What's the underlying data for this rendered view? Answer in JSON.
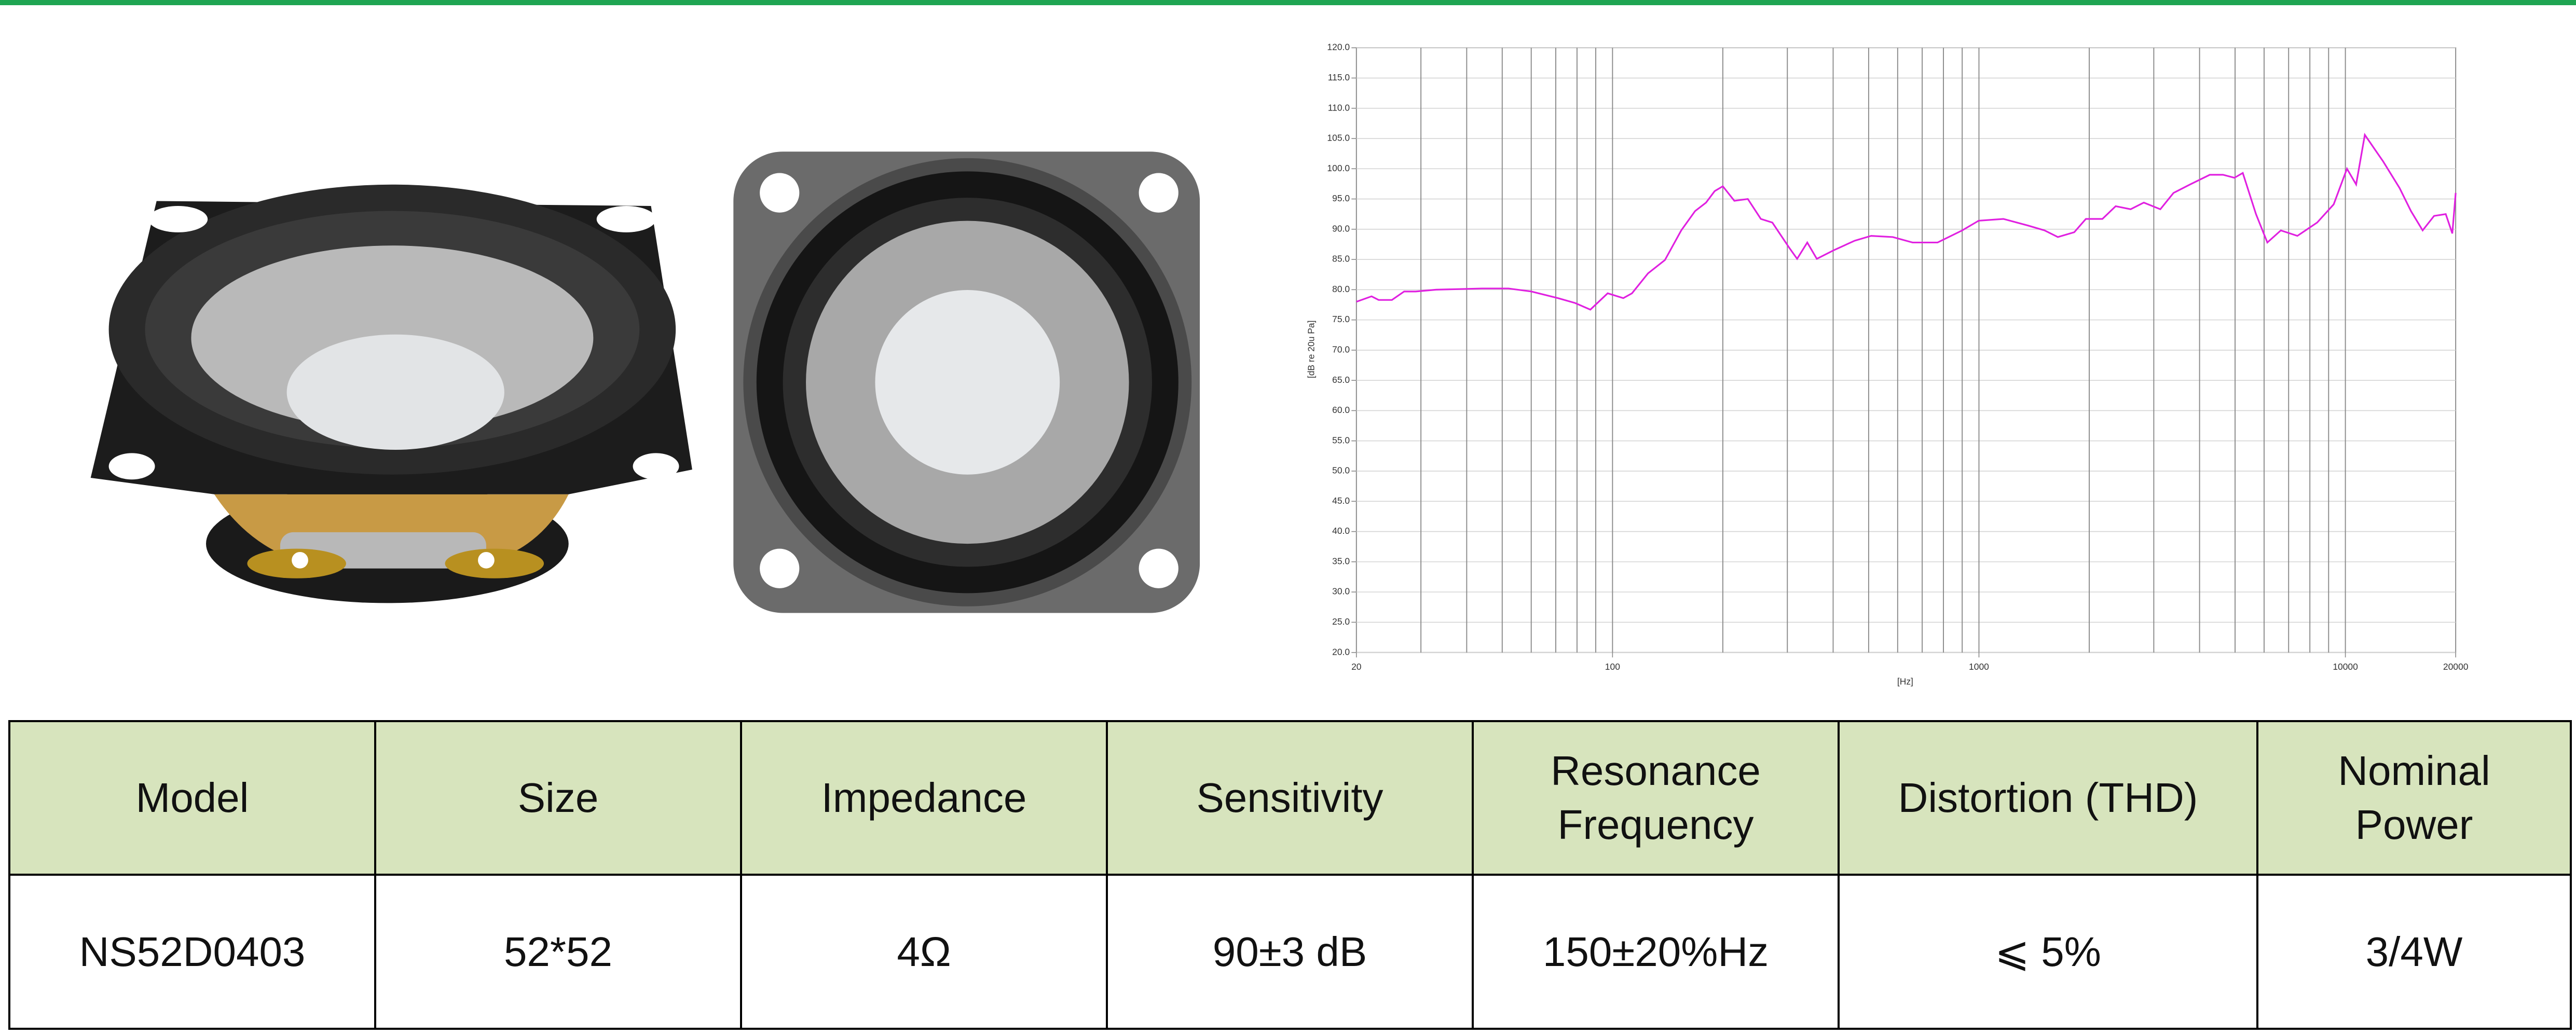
{
  "chart_data": {
    "type": "line",
    "xlabel": "[Hz]",
    "ylabel": "[dB re 20u Pa]",
    "log_x": true,
    "grid": true,
    "color": "#e020e0",
    "xlim": [
      20,
      20000
    ],
    "xticks": [
      20,
      100,
      1000,
      10000,
      20000
    ],
    "xgrid": [
      30,
      40,
      50,
      60,
      70,
      80,
      90,
      100,
      200,
      300,
      400,
      500,
      600,
      700,
      800,
      900,
      1000,
      2000,
      3000,
      4000,
      5000,
      6000,
      7000,
      8000,
      9000,
      10000
    ],
    "ylim": [
      20,
      120
    ],
    "yticks": [
      {
        "value": 20,
        "label": "20.0"
      },
      {
        "value": 25,
        "label": "25.0"
      },
      {
        "value": 30,
        "label": "30.0"
      },
      {
        "value": 35,
        "label": "35.0"
      },
      {
        "value": 40,
        "label": "40.0"
      },
      {
        "value": 45,
        "label": "45.0"
      },
      {
        "value": 50,
        "label": "50.0"
      },
      {
        "value": 55,
        "label": "55.0"
      },
      {
        "value": 60,
        "label": "60.0"
      },
      {
        "value": 65,
        "label": "65.0"
      },
      {
        "value": 70,
        "label": "70.0"
      },
      {
        "value": 75,
        "label": "75.0"
      },
      {
        "value": 80,
        "label": "80.0"
      },
      {
        "value": 85,
        "label": "85.0"
      },
      {
        "value": 90,
        "label": "90.0"
      },
      {
        "value": 95,
        "label": "95.0"
      },
      {
        "value": 100,
        "label": "100.0"
      },
      {
        "value": 105,
        "label": "105.0"
      },
      {
        "value": 110,
        "label": "110.0"
      },
      {
        "value": 115,
        "label": "115.0"
      },
      {
        "value": 120,
        "label": "120.0"
      }
    ],
    "x": [
      20,
      22,
      23,
      25,
      27,
      29,
      33,
      44,
      52,
      60,
      71,
      79,
      87,
      97,
      107,
      113,
      125,
      139,
      154,
      168,
      180,
      190,
      200,
      215,
      234,
      254,
      273,
      303,
      319,
      340,
      361,
      401,
      458,
      508,
      582,
      659,
      771,
      900,
      998,
      1166,
      1362,
      1510,
      1642,
      1820,
      1958,
      2172,
      2361,
      2594,
      2818,
      3126,
      3396,
      3768,
      4266,
      4634,
      4980,
      5248,
      5702,
      6124,
      6666,
      7396,
      8376,
      9290,
      10100,
      10700,
      11300,
      12680,
      14060,
      15100,
      16250,
      17460,
      18790,
      19580,
      20000
    ],
    "values": [
      78.0,
      78.9,
      78.3,
      78.3,
      79.7,
      79.7,
      80.0,
      80.2,
      80.2,
      79.7,
      78.6,
      77.8,
      76.7,
      79.4,
      78.6,
      79.4,
      82.7,
      84.9,
      89.8,
      93.0,
      94.4,
      96.3,
      97.1,
      94.7,
      95.0,
      91.7,
      91.1,
      87.0,
      85.1,
      87.8,
      85.1,
      86.5,
      88.1,
      88.9,
      88.7,
      87.8,
      87.8,
      89.8,
      91.4,
      91.7,
      90.6,
      89.8,
      88.7,
      89.5,
      91.7,
      91.7,
      93.8,
      93.3,
      94.4,
      93.3,
      96.0,
      97.4,
      99.0,
      99.0,
      98.5,
      99.3,
      92.5,
      87.8,
      89.8,
      88.9,
      91.1,
      94.1,
      100.0,
      97.4,
      105.6,
      101.2,
      96.8,
      93.0,
      89.8,
      92.2,
      92.5,
      89.3,
      96.0
    ]
  },
  "table": {
    "header": [
      "Model",
      "Size",
      "Impedance",
      "Sensitivity",
      "Resonance Frequency",
      "Distortion (THD)",
      "Nominal Power"
    ],
    "rows": [
      [
        "NS52D0403",
        "52*52",
        "4Ω",
        "90±3 dB",
        "150±20%Hz",
        "⩽ 5%",
        "3/4W"
      ]
    ]
  }
}
